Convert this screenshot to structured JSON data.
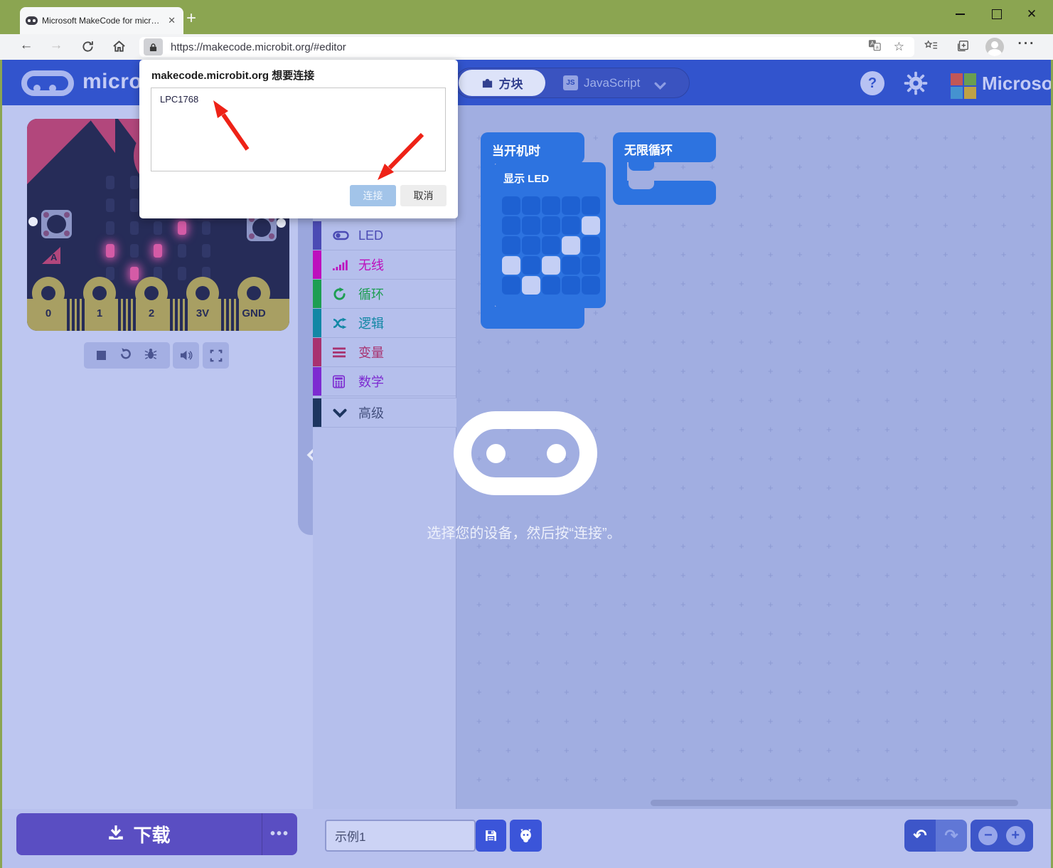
{
  "browser": {
    "tab_title": "Microsoft MakeCode for micro:b",
    "url": "https://makecode.microbit.org/#editor"
  },
  "permission_dialog": {
    "title": "makecode.microbit.org 想要连接",
    "devices": [
      "LPC1768"
    ],
    "buttons": {
      "connect": "连接",
      "cancel": "取消"
    }
  },
  "navbar": {
    "brand": "micro:bit",
    "blocks_tab": "方块",
    "js_badge": "JS",
    "javascript_tab": "JavaScript",
    "help_label": "?",
    "microsoft": "Microsoft",
    "accent_color": "#3254cd"
  },
  "toolbox": {
    "categories": [
      {
        "id": "led",
        "label": "LED",
        "color": "#4b4bb4",
        "icon": "toggle-icon"
      },
      {
        "id": "radio",
        "label": "无线",
        "color": "#bd0fbd",
        "icon": "signal-icon"
      },
      {
        "id": "loops",
        "label": "循环",
        "color": "#1d9e52",
        "icon": "loop-icon"
      },
      {
        "id": "logic",
        "label": "逻辑",
        "color": "#1287a5",
        "icon": "shuffle-icon"
      },
      {
        "id": "variables",
        "label": "变量",
        "color": "#a8326f",
        "icon": "lines-icon"
      },
      {
        "id": "math",
        "label": "数学",
        "color": "#7d2bd1",
        "icon": "calculator-icon"
      }
    ],
    "advanced": {
      "label": "高级",
      "color": "#1d355f"
    }
  },
  "workspace": {
    "on_start_label": "当开机时",
    "show_leds_label": "显示 LED",
    "forever_label": "无限循环",
    "led_grid": [
      [
        0,
        0,
        0,
        0,
        0
      ],
      [
        0,
        0,
        0,
        0,
        1
      ],
      [
        0,
        0,
        0,
        1,
        0
      ],
      [
        1,
        0,
        1,
        0,
        0
      ],
      [
        0,
        1,
        0,
        0,
        0
      ]
    ],
    "block_color": "#2d73e0",
    "overlay_message": "选择您的设备，然后按“连接”。"
  },
  "simulator": {
    "button_a_label": "A",
    "pins": [
      "0",
      "1",
      "2",
      "3V",
      "GND"
    ],
    "lit_led_color": "#d45ba6"
  },
  "bottom_bar": {
    "download_label": "下载",
    "more_label": "•••",
    "project_name": "示例1"
  }
}
